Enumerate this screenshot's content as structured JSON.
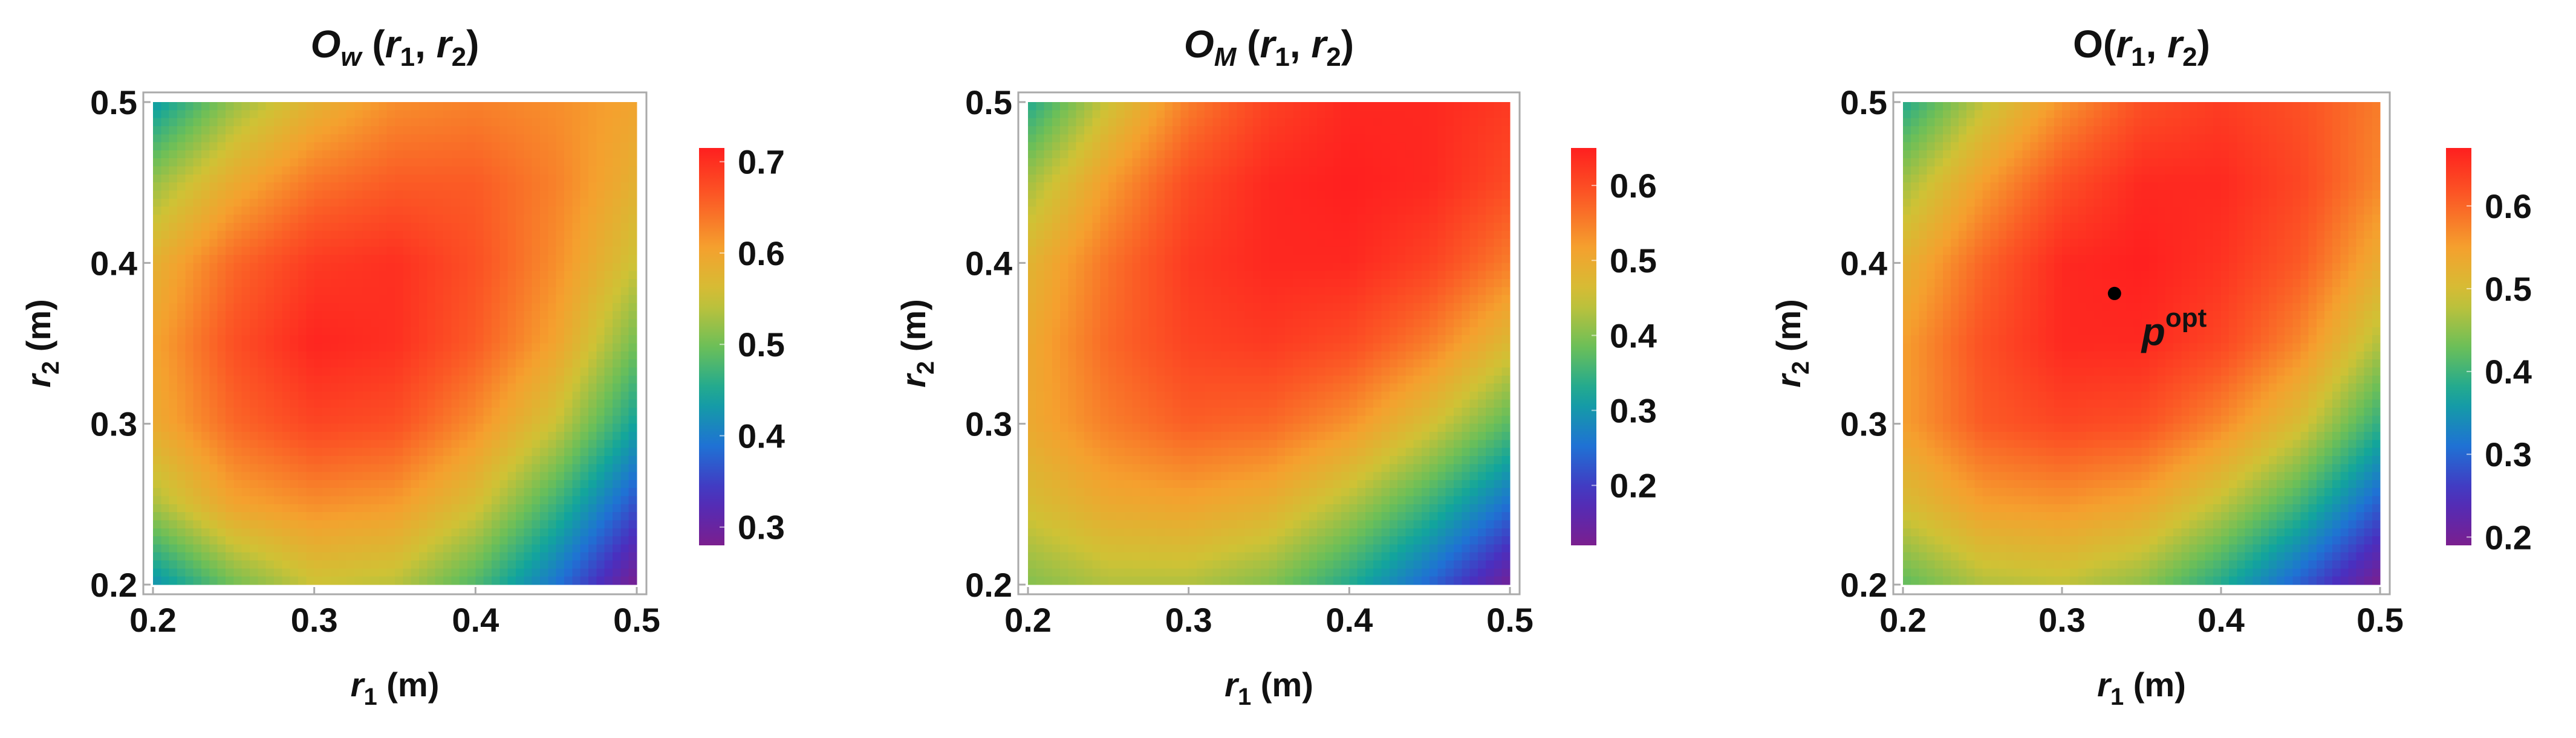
{
  "chart_data": [
    {
      "type": "heatmap",
      "title": {
        "main": "O",
        "sub": "w",
        "args": " (r",
        "a1": "1",
        "comma": ", r",
        "a2": "2",
        "close": ")",
        "main_italic": true
      },
      "xlabel": {
        "var": "r",
        "sub": "1",
        "unit": " (m)"
      },
      "ylabel": {
        "var": "r",
        "sub": "2",
        "unit": " (m)"
      },
      "xlim": [
        0.2,
        0.5
      ],
      "ylim": [
        0.2,
        0.5
      ],
      "xticks": [
        "0.2",
        "0.3",
        "0.4",
        "0.5"
      ],
      "yticks": [
        "0.2",
        "0.3",
        "0.4",
        "0.5"
      ],
      "grid_x": [
        0.2,
        0.25,
        0.3,
        0.35,
        0.4,
        0.45,
        0.5
      ],
      "grid_y": [
        0.5,
        0.45,
        0.4,
        0.35,
        0.3,
        0.25,
        0.2
      ],
      "z": [
        [
          0.43,
          0.52,
          0.58,
          0.62,
          0.63,
          0.62,
          0.6
        ],
        [
          0.52,
          0.59,
          0.64,
          0.66,
          0.66,
          0.63,
          0.58
        ],
        [
          0.58,
          0.65,
          0.69,
          0.7,
          0.67,
          0.62,
          0.55
        ],
        [
          0.6,
          0.67,
          0.71,
          0.7,
          0.66,
          0.6,
          0.5
        ],
        [
          0.59,
          0.65,
          0.68,
          0.67,
          0.62,
          0.55,
          0.44
        ],
        [
          0.53,
          0.6,
          0.62,
          0.61,
          0.56,
          0.47,
          0.36
        ],
        [
          0.42,
          0.5,
          0.55,
          0.54,
          0.48,
          0.39,
          0.28
        ]
      ],
      "colorbar": {
        "range": [
          0.28,
          0.715
        ],
        "ticks": [
          0.3,
          0.4,
          0.5,
          0.6,
          0.7
        ],
        "tick_labels": [
          "0.3",
          "0.4",
          "0.5",
          "0.6",
          "0.7"
        ]
      }
    },
    {
      "type": "heatmap",
      "title": {
        "main": "O",
        "sub": "M",
        "args": " (r",
        "a1": "1",
        "comma": ", r",
        "a2": "2",
        "close": ")",
        "main_italic": true
      },
      "xlabel": {
        "var": "r",
        "sub": "1",
        "unit": " (m)"
      },
      "ylabel": {
        "var": "r",
        "sub": "2",
        "unit": " (m)"
      },
      "xlim": [
        0.2,
        0.5
      ],
      "ylim": [
        0.2,
        0.5
      ],
      "xticks": [
        "0.2",
        "0.3",
        "0.4",
        "0.5"
      ],
      "yticks": [
        "0.2",
        "0.3",
        "0.4",
        "0.5"
      ],
      "grid_x": [
        0.2,
        0.25,
        0.3,
        0.35,
        0.4,
        0.45,
        0.5
      ],
      "grid_y": [
        0.5,
        0.45,
        0.4,
        0.35,
        0.3,
        0.25,
        0.2
      ],
      "z": [
        [
          0.33,
          0.45,
          0.55,
          0.61,
          0.64,
          0.64,
          0.62
        ],
        [
          0.42,
          0.52,
          0.6,
          0.64,
          0.65,
          0.64,
          0.6
        ],
        [
          0.48,
          0.56,
          0.62,
          0.64,
          0.64,
          0.61,
          0.55
        ],
        [
          0.5,
          0.57,
          0.61,
          0.62,
          0.6,
          0.55,
          0.47
        ],
        [
          0.5,
          0.55,
          0.58,
          0.57,
          0.53,
          0.46,
          0.37
        ],
        [
          0.46,
          0.5,
          0.51,
          0.49,
          0.43,
          0.35,
          0.25
        ],
        [
          0.4,
          0.43,
          0.43,
          0.4,
          0.33,
          0.24,
          0.13
        ]
      ],
      "colorbar": {
        "range": [
          0.12,
          0.65
        ],
        "ticks": [
          0.2,
          0.3,
          0.4,
          0.5,
          0.6
        ],
        "tick_labels": [
          "0.2",
          "0.3",
          "0.4",
          "0.5",
          "0.6"
        ]
      }
    },
    {
      "type": "heatmap",
      "title": {
        "main": "O",
        "sub": "",
        "args": "(r",
        "a1": "1",
        "comma": ", r",
        "a2": "2",
        "close": ")",
        "main_italic": false
      },
      "xlabel": {
        "var": "r",
        "sub": "1",
        "unit": " (m)"
      },
      "ylabel": {
        "var": "r",
        "sub": "2",
        "unit": " (m)"
      },
      "xlim": [
        0.2,
        0.5
      ],
      "ylim": [
        0.2,
        0.5
      ],
      "xticks": [
        "0.2",
        "0.3",
        "0.4",
        "0.5"
      ],
      "yticks": [
        "0.2",
        "0.3",
        "0.4",
        "0.5"
      ],
      "grid_x": [
        0.2,
        0.25,
        0.3,
        0.35,
        0.4,
        0.45,
        0.5
      ],
      "grid_y": [
        0.5,
        0.45,
        0.4,
        0.35,
        0.3,
        0.25,
        0.2
      ],
      "z": [
        [
          0.38,
          0.48,
          0.56,
          0.62,
          0.64,
          0.62,
          0.58
        ],
        [
          0.46,
          0.55,
          0.62,
          0.66,
          0.66,
          0.63,
          0.57
        ],
        [
          0.52,
          0.6,
          0.66,
          0.67,
          0.65,
          0.61,
          0.53
        ],
        [
          0.55,
          0.62,
          0.66,
          0.66,
          0.63,
          0.57,
          0.47
        ],
        [
          0.55,
          0.61,
          0.63,
          0.62,
          0.57,
          0.5,
          0.39
        ],
        [
          0.5,
          0.55,
          0.56,
          0.54,
          0.48,
          0.4,
          0.29
        ],
        [
          0.42,
          0.47,
          0.48,
          0.45,
          0.38,
          0.29,
          0.19
        ]
      ],
      "colorbar": {
        "range": [
          0.19,
          0.67
        ],
        "ticks": [
          0.2,
          0.3,
          0.4,
          0.5,
          0.6
        ],
        "tick_labels": [
          "0.2",
          "0.3",
          "0.4",
          "0.5",
          "0.6"
        ]
      },
      "annotation": {
        "point": [
          0.333,
          0.381
        ],
        "label": "p",
        "label_sup": "opt"
      }
    }
  ],
  "colormap": [
    "#7b1f8e",
    "#4a2fbf",
    "#1f72d4",
    "#12a59c",
    "#6cbf58",
    "#cfc235",
    "#f5a02e",
    "#fb5a25",
    "#ff1f1f"
  ]
}
